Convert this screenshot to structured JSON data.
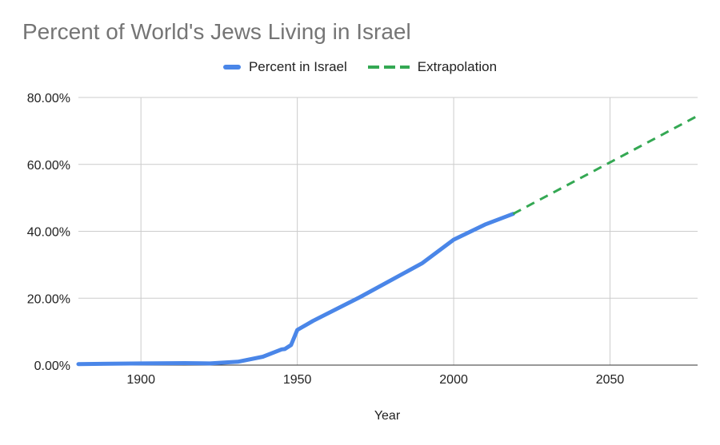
{
  "chart_data": {
    "type": "line",
    "title": "Percent of World's Jews Living in Israel",
    "xlabel": "Year",
    "ylabel": "",
    "xlim": [
      1880,
      2078
    ],
    "ylim": [
      0,
      80
    ],
    "grid": true,
    "legend_position": "top-center",
    "x_ticks": [
      1900,
      1950,
      2000,
      2050
    ],
    "x_tick_labels": [
      "1900",
      "1950",
      "2000",
      "2050"
    ],
    "y_ticks": [
      0,
      20,
      40,
      60,
      80
    ],
    "y_tick_labels": [
      "0.00%",
      "20.00%",
      "40.00%",
      "60.00%",
      "80.00%"
    ],
    "series": [
      {
        "name": "Percent in Israel",
        "color": "#4a86e8",
        "style": "solid",
        "points": [
          [
            1880,
            0.3
          ],
          [
            1900,
            0.5
          ],
          [
            1914,
            0.6
          ],
          [
            1922,
            0.5
          ],
          [
            1931,
            1.0
          ],
          [
            1939,
            2.5
          ],
          [
            1945,
            4.7
          ],
          [
            1946,
            4.8
          ],
          [
            1948,
            6.0
          ],
          [
            1950,
            10.5
          ],
          [
            1955,
            13.2
          ],
          [
            1970,
            20.3
          ],
          [
            1990,
            30.5
          ],
          [
            2000,
            37.5
          ],
          [
            2010,
            42.0
          ],
          [
            2019,
            45.2
          ]
        ]
      },
      {
        "name": "Extrapolation",
        "color": "#34a853",
        "style": "dashed",
        "points": [
          [
            2019,
            45.2
          ],
          [
            2078,
            74.5
          ]
        ]
      }
    ]
  }
}
